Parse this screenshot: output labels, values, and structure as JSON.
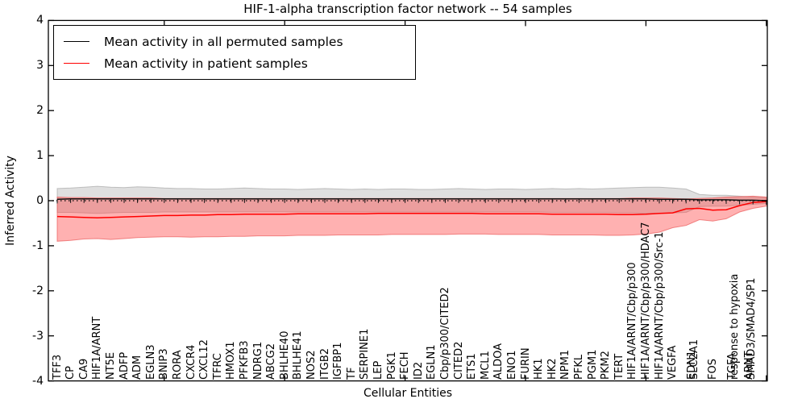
{
  "title": "HIF-1-alpha transcription factor network -- 54 samples",
  "axes": {
    "x_label": "Cellular Entities",
    "y_label": "Inferred Activity",
    "y_ticks": [
      "4",
      "3",
      "2",
      "1",
      "0",
      "-1",
      "-2",
      "-3",
      "-4"
    ],
    "ylim": [
      -4,
      4
    ]
  },
  "legend": {
    "items": [
      {
        "label": "Mean activity in all permuted samples",
        "color": "#000000"
      },
      {
        "label": "Mean activity in patient samples",
        "color": "#ff0000"
      }
    ]
  },
  "colors": {
    "permuted_line": "#111111",
    "patient_line": "#ff0000",
    "permuted_band_fill": "rgba(170,170,170,0.38)",
    "permuted_band_edge": "rgba(150,150,150,0.55)",
    "patient_band_fill": "rgba(255,70,70,0.42)",
    "patient_band_edge": "rgba(235,90,90,0.7)",
    "axis": "#000000"
  },
  "chart_data": {
    "type": "line",
    "title": "HIF-1-alpha transcription factor network -- 54 samples",
    "xlabel": "Cellular Entities",
    "ylabel": "Inferred Activity",
    "ylim": [
      -4,
      4
    ],
    "zero_line": true,
    "legend_position": "upper left",
    "x_labels": [
      "TFF3",
      "CP",
      "CA9",
      "HIF1A/ARNT",
      "NT5E",
      "ADFP",
      "ADM",
      "EGLN3",
      "BNIP3",
      "RORA",
      "CXCR4",
      "CXCL12",
      "TFRC",
      "HMOX1",
      "PFKFB3",
      "NDRG1",
      "ABCG2",
      "BHLHE40",
      "BHLHE41",
      "NOS2",
      "ITGB2",
      "IGFBP1",
      "TF",
      "SERPINE1",
      "LEP",
      "PGK1",
      "FECH",
      "ID2",
      "EGLN1",
      "Cbp/p300/CITED2",
      "CITED2",
      "ETS1",
      "MCL1",
      "ALDOA",
      "ENO1",
      "FURIN",
      "HK1",
      "HK2",
      "NPM1",
      "PFKL",
      "PGM1",
      "PKM2",
      "TERT",
      "HIF1A/ARNT/Cbp/p300",
      "HIF1A/ARNT/Cbp/p300/HDAC7",
      "HIF1A/ARNT/Cbp/p300/Src-1",
      "VEGFA",
      "EDN1",
      "SLC2A1",
      "FOS",
      "TGFA",
      "response to hypoxia",
      "ARNT",
      "SMAD3/SMAD4/SP1"
    ],
    "label_x_overrides": {
      "47": 858,
      "48": 861,
      "49": 884,
      "50": 908,
      "51": 911,
      "52": 929,
      "53": 932
    },
    "x_major_tick_indices": [
      8,
      17,
      26,
      35,
      44,
      53
    ],
    "series": [
      {
        "name": "Mean activity in all permuted samples",
        "values": [
          0.03,
          0.04,
          0.04,
          0.04,
          0.04,
          0.04,
          0.04,
          0.04,
          0.04,
          0.04,
          0.04,
          0.04,
          0.04,
          0.04,
          0.04,
          0.04,
          0.04,
          0.04,
          0.04,
          0.04,
          0.04,
          0.04,
          0.04,
          0.04,
          0.04,
          0.04,
          0.04,
          0.04,
          0.04,
          0.04,
          0.04,
          0.04,
          0.04,
          0.04,
          0.04,
          0.04,
          0.04,
          0.04,
          0.04,
          0.04,
          0.04,
          0.04,
          0.04,
          0.04,
          0.04,
          0.03,
          0.03,
          0.03,
          0.02,
          0.02,
          0.02,
          0.01,
          0.01,
          0.0
        ]
      },
      {
        "name": "Mean activity in patient samples",
        "values": [
          -0.35,
          -0.36,
          -0.37,
          -0.38,
          -0.37,
          -0.36,
          -0.35,
          -0.34,
          -0.33,
          -0.33,
          -0.32,
          -0.32,
          -0.31,
          -0.31,
          -0.3,
          -0.3,
          -0.3,
          -0.3,
          -0.29,
          -0.29,
          -0.29,
          -0.29,
          -0.29,
          -0.29,
          -0.28,
          -0.28,
          -0.28,
          -0.28,
          -0.28,
          -0.28,
          -0.28,
          -0.28,
          -0.29,
          -0.29,
          -0.29,
          -0.29,
          -0.29,
          -0.3,
          -0.3,
          -0.3,
          -0.3,
          -0.3,
          -0.31,
          -0.31,
          -0.3,
          -0.28,
          -0.27,
          -0.18,
          -0.17,
          -0.21,
          -0.2,
          -0.11,
          -0.04,
          -0.02
        ]
      }
    ],
    "bands": [
      {
        "name": "permuted activity range",
        "top": [
          0.27,
          0.28,
          0.3,
          0.32,
          0.3,
          0.29,
          0.31,
          0.3,
          0.28,
          0.27,
          0.27,
          0.26,
          0.26,
          0.27,
          0.28,
          0.27,
          0.26,
          0.26,
          0.25,
          0.26,
          0.27,
          0.26,
          0.25,
          0.26,
          0.25,
          0.26,
          0.26,
          0.25,
          0.25,
          0.26,
          0.27,
          0.26,
          0.25,
          0.26,
          0.26,
          0.25,
          0.26,
          0.27,
          0.26,
          0.27,
          0.26,
          0.27,
          0.28,
          0.29,
          0.3,
          0.3,
          0.28,
          0.26,
          0.14,
          0.12,
          0.12,
          0.1,
          0.08,
          0.07
        ],
        "bottom": [
          -0.26,
          -0.26,
          -0.27,
          -0.28,
          -0.27,
          -0.26,
          -0.26,
          -0.26,
          -0.25,
          -0.25,
          -0.25,
          -0.25,
          -0.25,
          -0.25,
          -0.25,
          -0.25,
          -0.25,
          -0.25,
          -0.25,
          -0.25,
          -0.25,
          -0.25,
          -0.25,
          -0.25,
          -0.25,
          -0.25,
          -0.25,
          -0.25,
          -0.25,
          -0.25,
          -0.25,
          -0.25,
          -0.25,
          -0.25,
          -0.25,
          -0.25,
          -0.25,
          -0.26,
          -0.26,
          -0.26,
          -0.26,
          -0.26,
          -0.27,
          -0.27,
          -0.28,
          -0.28,
          -0.27,
          -0.26,
          -0.13,
          -0.12,
          -0.12,
          -0.1,
          -0.08,
          -0.06
        ]
      },
      {
        "name": "patient activity range",
        "top": [
          0.08,
          0.07,
          0.07,
          0.06,
          0.06,
          0.06,
          0.06,
          0.06,
          0.05,
          0.05,
          0.05,
          0.05,
          0.05,
          0.05,
          0.05,
          0.05,
          0.05,
          0.05,
          0.05,
          0.05,
          0.05,
          0.05,
          0.05,
          0.05,
          0.05,
          0.05,
          0.05,
          0.05,
          0.05,
          0.05,
          0.05,
          0.05,
          0.05,
          0.05,
          0.05,
          0.05,
          0.05,
          0.05,
          0.05,
          0.05,
          0.05,
          0.05,
          0.05,
          0.06,
          0.06,
          0.06,
          0.05,
          0.04,
          0.05,
          0.06,
          0.08,
          0.09,
          0.1,
          0.08
        ],
        "bottom": [
          -0.9,
          -0.88,
          -0.85,
          -0.84,
          -0.86,
          -0.84,
          -0.82,
          -0.81,
          -0.8,
          -0.8,
          -0.81,
          -0.8,
          -0.8,
          -0.79,
          -0.79,
          -0.78,
          -0.78,
          -0.78,
          -0.77,
          -0.77,
          -0.77,
          -0.76,
          -0.76,
          -0.76,
          -0.76,
          -0.75,
          -0.75,
          -0.75,
          -0.75,
          -0.75,
          -0.74,
          -0.74,
          -0.74,
          -0.75,
          -0.75,
          -0.75,
          -0.75,
          -0.76,
          -0.76,
          -0.76,
          -0.76,
          -0.77,
          -0.77,
          -0.76,
          -0.74,
          -0.7,
          -0.6,
          -0.55,
          -0.42,
          -0.45,
          -0.4,
          -0.25,
          -0.17,
          -0.12
        ]
      }
    ]
  }
}
